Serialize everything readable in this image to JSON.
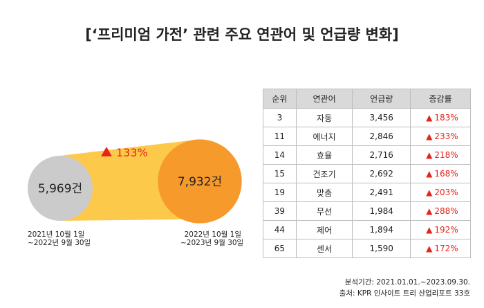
{
  "title": "[‘프리미엄 가전’ 관련 주요 연관어 및 언급량 변화]",
  "chart_data": {
    "type": "bubble-comparison",
    "change": {
      "direction": "up",
      "label": "133%"
    },
    "periods": [
      {
        "value": 5969,
        "value_label": "5,969건",
        "period": [
          "2021년 10월 1일",
          "~2022년 9월 30일"
        ],
        "color": "#cbcbcb"
      },
      {
        "value": 7932,
        "value_label": "7,932건",
        "period": [
          "2022년 10월 1일",
          "~2023년 9월 30일"
        ],
        "color": "#f79a2c"
      }
    ],
    "band_color": "#fdc94a",
    "arrow_color": "#e8231b"
  },
  "table": {
    "headers": [
      "순위",
      "연관어",
      "언급량",
      "증감률"
    ],
    "rows": [
      {
        "rank": "3",
        "word": "자동",
        "mentions": "3,456",
        "rate": "183%"
      },
      {
        "rank": "11",
        "word": "에너지",
        "mentions": "2,846",
        "rate": "233%"
      },
      {
        "rank": "14",
        "word": "효율",
        "mentions": "2,716",
        "rate": "218%"
      },
      {
        "rank": "15",
        "word": "건조기",
        "mentions": "2,692",
        "rate": "168%"
      },
      {
        "rank": "19",
        "word": "맞춤",
        "mentions": "2,491",
        "rate": "203%"
      },
      {
        "rank": "39",
        "word": "무선",
        "mentions": "1,984",
        "rate": "288%"
      },
      {
        "rank": "44",
        "word": "제어",
        "mentions": "1,894",
        "rate": "192%"
      },
      {
        "rank": "65",
        "word": "센서",
        "mentions": "1,590",
        "rate": "172%"
      }
    ]
  },
  "source": {
    "period_line": "분석기간: 2021.01.01.~2023.09.30.",
    "source_line": "출처: KPR 인사이트 트리 산업리포트 33호"
  }
}
